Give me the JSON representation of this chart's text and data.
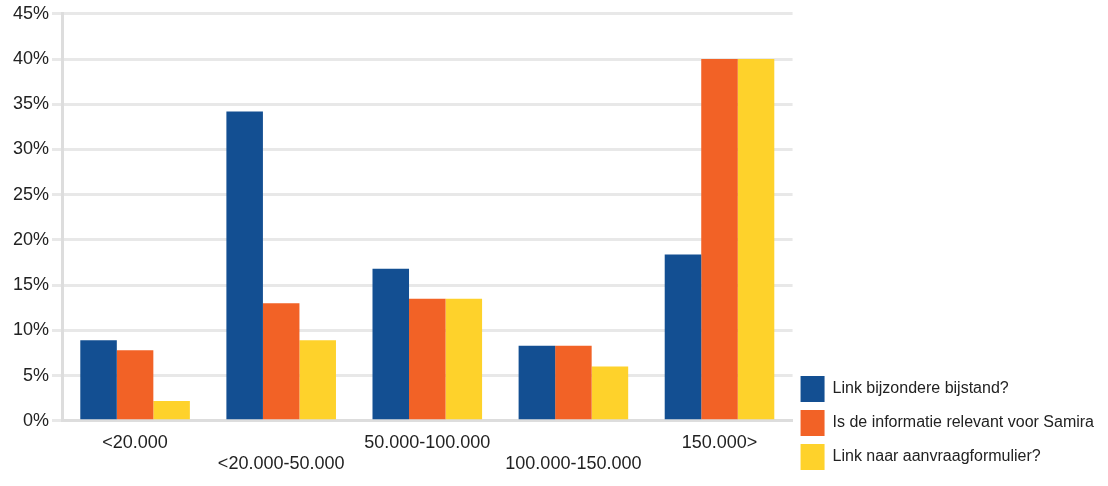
{
  "chart_data": {
    "type": "bar",
    "categories": [
      "<20.000",
      "<20.000-50.000",
      "50.000-100.000",
      "100.000-150.000",
      "150.000>"
    ],
    "series": [
      {
        "name": "Link bijzondere bijstand?",
        "color": "#134f92",
        "values": [
          8.9,
          34.2,
          16.8,
          8.3,
          18.4
        ]
      },
      {
        "name": "Is de informatie relevant voor Samira",
        "color": "#f26226",
        "values": [
          7.8,
          13.0,
          13.5,
          8.3,
          40
        ]
      },
      {
        "name": "Link naar aanvraagformulier?",
        "color": "#fed22b",
        "values": [
          2.2,
          8.9,
          13.5,
          6.0,
          40
        ]
      }
    ],
    "ylim": [
      0,
      45
    ],
    "yticks": [
      {
        "value": 0,
        "label": "0%"
      },
      {
        "value": 5,
        "label": "5%"
      },
      {
        "value": 10,
        "label": "10%"
      },
      {
        "value": 15,
        "label": "15%"
      },
      {
        "value": 20,
        "label": "20%"
      },
      {
        "value": 25,
        "label": "25%"
      },
      {
        "value": 30,
        "label": "30%"
      },
      {
        "value": 35,
        "label": "35%"
      },
      {
        "value": 40,
        "label": "40%"
      },
      {
        "value": 45,
        "label": "45%"
      }
    ],
    "grid": "y",
    "legend": "right"
  }
}
